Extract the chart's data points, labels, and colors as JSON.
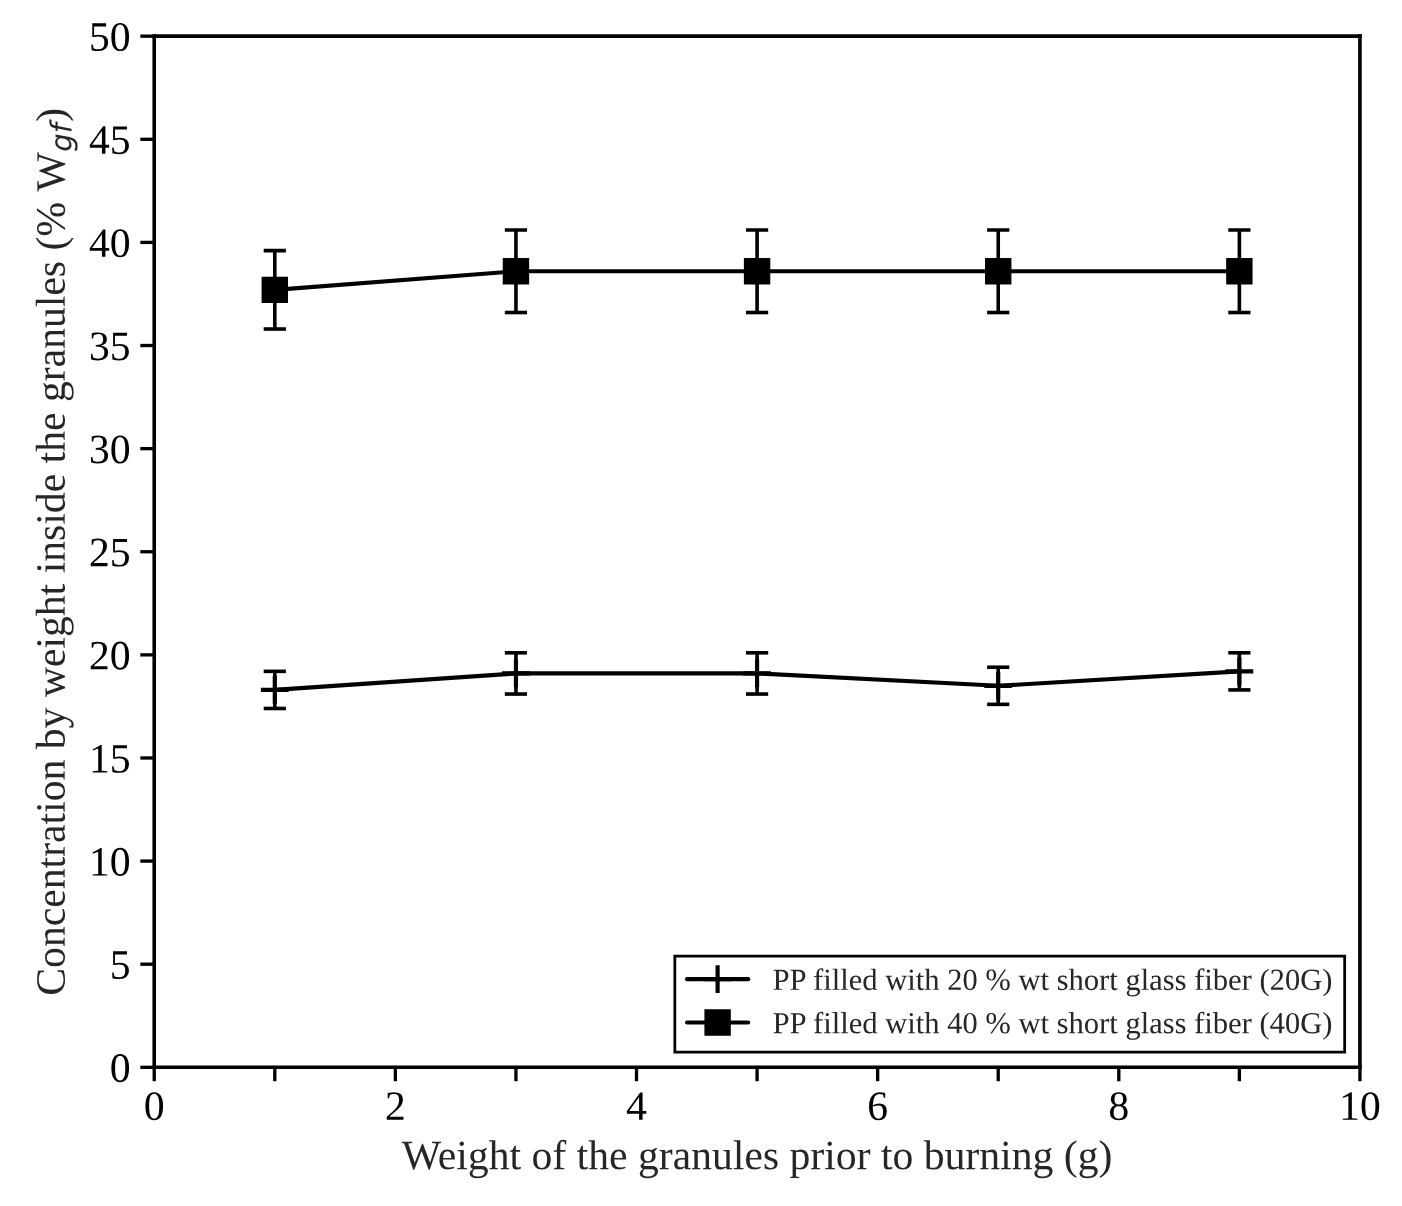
{
  "chart_data": {
    "type": "line",
    "xlabel": "Weight of the granules prior to burning (g)",
    "ylabel": "Concentration by weight inside the granules (% W$_{gf}$)",
    "x": [
      1,
      3,
      5,
      7,
      9
    ],
    "series": [
      {
        "name": "PP filled with 20 % wt short glass fiber (20G)",
        "color": "#000000",
        "marker": "cross",
        "values": [
          18.3,
          19.1,
          19.1,
          18.5,
          19.2
        ],
        "errors": [
          0.9,
          1.0,
          1.0,
          0.9,
          0.9
        ]
      },
      {
        "name": "PP filled with 40 % wt short glass fiber (40G)",
        "color": "#000000",
        "marker": "square",
        "values": [
          37.7,
          38.6,
          38.6,
          38.6,
          38.6
        ],
        "errors": [
          1.9,
          2.0,
          2.0,
          2.0,
          2.0
        ]
      }
    ],
    "xlim": [
      0,
      10
    ],
    "xticks": [
      0,
      {
        "value": 1,
        "label": null
      },
      2,
      {
        "value": 3,
        "label": null
      },
      4,
      {
        "value": 5,
        "label": null
      },
      6,
      {
        "value": 7,
        "label": null
      },
      8,
      {
        "value": 9,
        "label": null
      },
      10
    ],
    "ylim": [
      0,
      50
    ],
    "yticks": [
      0,
      5,
      10,
      15,
      20,
      25,
      30,
      35,
      40,
      45,
      50
    ],
    "grid": false,
    "legend": "bottom right",
    "line_style": "solid"
  }
}
